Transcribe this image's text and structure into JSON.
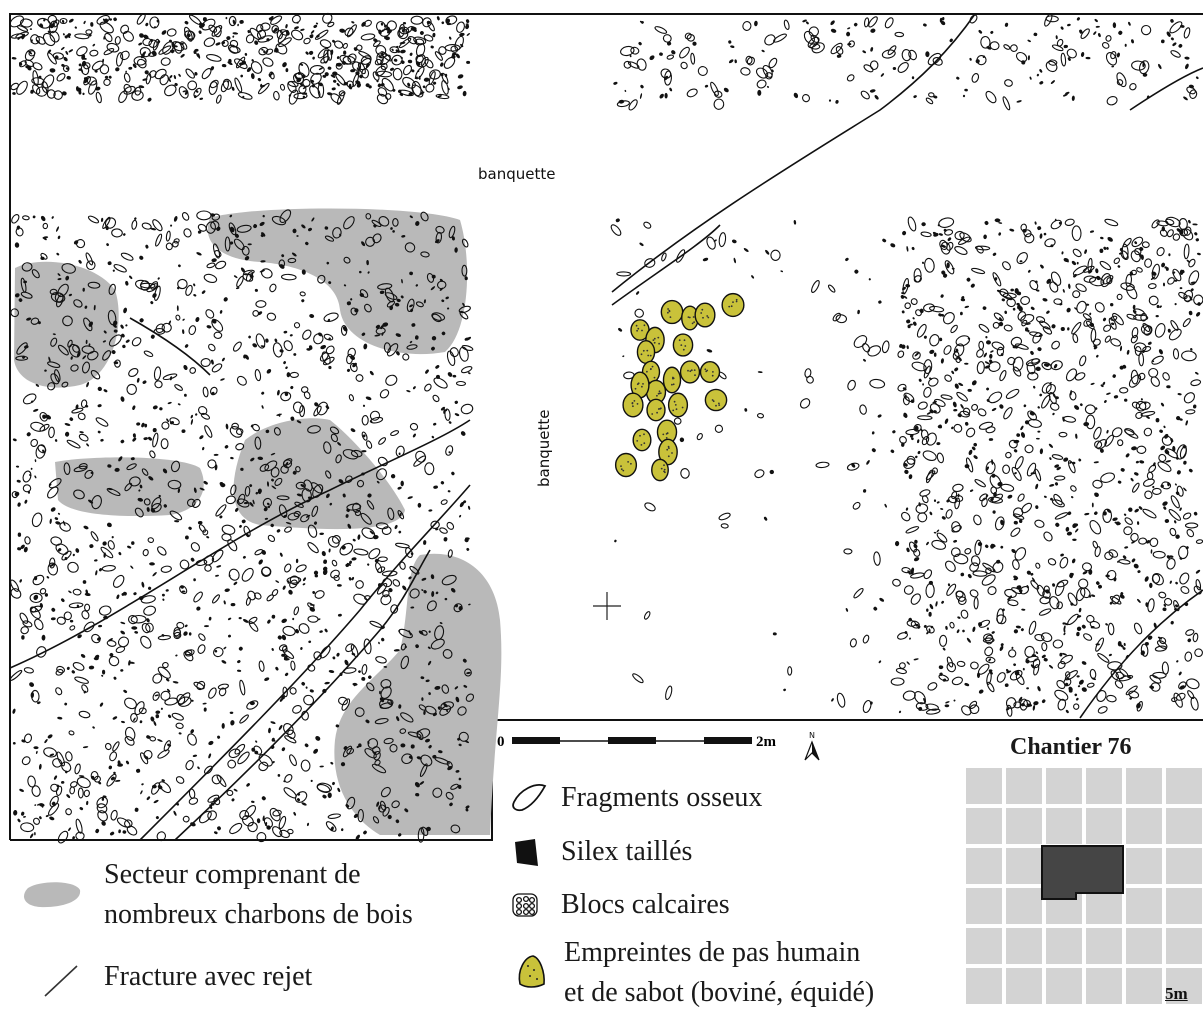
{
  "map": {
    "banquette_top": "banquette",
    "banquette_side": "banquette",
    "scale_start": "0",
    "scale_end": "2m",
    "north": "N"
  },
  "legend": {
    "charcoal_line1": "Secteur comprenant de",
    "charcoal_line2": "nombreux charbons de bois",
    "fracture": "Fracture avec rejet",
    "bones": "Fragments osseux",
    "flint": "Silex taillés",
    "limestone": "Blocs calcaires",
    "prints_line1": "Empreintes de pas humain",
    "prints_line2": "et de sabot (boviné, équidé)"
  },
  "inset": {
    "title": "Chantier 76",
    "scale": "5m"
  },
  "colors": {
    "charcoal_zone": "#b9b9b9",
    "footprint": "#c9c23a",
    "grid_cell": "#d3d3d3",
    "highlight_block": "#454545"
  }
}
